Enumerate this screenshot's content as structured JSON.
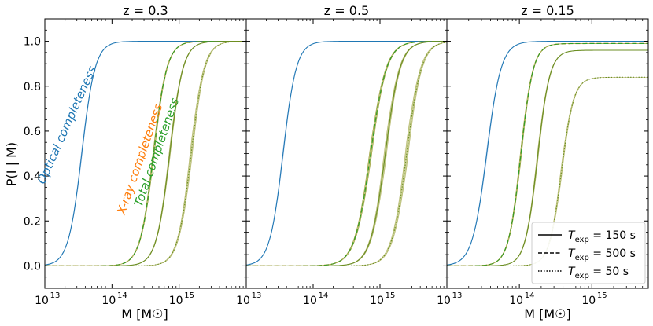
{
  "chart_data": [
    {
      "type": "line",
      "title": "z =  0.3",
      "xlabel": "M [M☉]",
      "ylabel": "P(I | M)",
      "xscale": "log",
      "xlim": [
        10000000000000.0,
        1e+16
      ],
      "ylim": [
        -0.1,
        1.1
      ],
      "xtick_labels": [
        "10",
        "10",
        "10"
      ],
      "xtick_exponents": [
        "13",
        "14",
        "15"
      ],
      "xtick_values": [
        13,
        14,
        15
      ],
      "ytick_labels": [
        "0.0",
        "0.2",
        "0.4",
        "0.6",
        "0.8",
        "1.0"
      ],
      "ytick_values": [
        0.0,
        0.2,
        0.4,
        0.6,
        0.8,
        1.0
      ],
      "series": [
        {
          "name": "Optical completeness",
          "kind": "optical",
          "color": "#1f77b4",
          "style": "solid",
          "plateau": 1.0,
          "logM50": 13.55,
          "width": 0.2,
          "band": 0.03
        },
        {
          "name": "X-ray completeness",
          "kind": "xray",
          "color": "#ff7f0e",
          "style": "dashed",
          "exposure": "500 s",
          "plateau": 1.0,
          "logM50": 14.62,
          "width": 0.2,
          "band": 0.03
        },
        {
          "name": "Total completeness",
          "kind": "total",
          "color": "#2ca02c",
          "style": "dashed",
          "exposure": "500 s",
          "plateau": 1.0,
          "logM50": 14.62,
          "width": 0.2,
          "band": 0.03
        },
        {
          "name": "Total completeness",
          "kind": "total",
          "color": "#2ca02c",
          "style": "solid",
          "exposure": "150 s",
          "plateau": 1.0,
          "logM50": 14.86,
          "width": 0.2,
          "band": 0.03
        },
        {
          "name": "Total completeness",
          "kind": "total",
          "color": "#2ca02c",
          "style": "dotted",
          "exposure": "50 s",
          "plateau": 1.0,
          "logM50": 15.18,
          "width": 0.2,
          "band": 0.05
        }
      ],
      "annotations": [
        {
          "text": "Optical completeness",
          "color": "#1f77b4",
          "logM": 13.38,
          "y": 0.62,
          "angle": -66
        },
        {
          "text": "X-ray completeness",
          "color": "#ff7f0e",
          "logM": 14.47,
          "y": 0.47,
          "angle": -71
        },
        {
          "text": "Total completeness",
          "color": "#2ca02c",
          "logM": 14.72,
          "y": 0.5,
          "angle": -71
        }
      ]
    },
    {
      "type": "line",
      "title": "z =  0.5",
      "xlabel": "",
      "ylabel": "",
      "xscale": "log",
      "xlim": [
        10000000000000.0,
        1e+16
      ],
      "ylim": [
        -0.1,
        1.1
      ],
      "xtick_labels": [
        "10",
        "10",
        "10"
      ],
      "xtick_exponents": [
        "13",
        "14",
        "15"
      ],
      "xtick_values": [
        13,
        14,
        15
      ],
      "ytick_labels": [],
      "ytick_values": [
        0.0,
        0.2,
        0.4,
        0.6,
        0.8,
        1.0
      ],
      "series": [
        {
          "name": "Optical completeness",
          "kind": "optical",
          "color": "#1f77b4",
          "style": "solid",
          "plateau": 1.0,
          "logM50": 13.55,
          "width": 0.2,
          "band": 0.03
        },
        {
          "name": "X-ray completeness",
          "kind": "xray",
          "color": "#ff7f0e",
          "style": "dashed",
          "exposure": "500 s",
          "plateau": 1.0,
          "logM50": 14.86,
          "width": 0.24,
          "band": 0.04
        },
        {
          "name": "Total completeness",
          "kind": "total",
          "color": "#2ca02c",
          "style": "dashed",
          "exposure": "500 s",
          "plateau": 1.0,
          "logM50": 14.86,
          "width": 0.24,
          "band": 0.04
        },
        {
          "name": "Total completeness",
          "kind": "total",
          "color": "#2ca02c",
          "style": "solid",
          "exposure": "150 s",
          "plateau": 1.0,
          "logM50": 15.08,
          "width": 0.22,
          "band": 0.05
        },
        {
          "name": "Total completeness",
          "kind": "total",
          "color": "#2ca02c",
          "style": "dotted",
          "exposure": "50 s",
          "plateau": 1.0,
          "logM50": 15.4,
          "width": 0.22,
          "band": 0.06
        }
      ],
      "annotations": []
    },
    {
      "type": "line",
      "title": "z = 0.15",
      "xlabel": "M [M☉]",
      "ylabel": "",
      "xscale": "log",
      "xlim": [
        10000000000000.0,
        6000000000000000.0
      ],
      "ylim": [
        -0.1,
        1.1
      ],
      "xtick_labels": [
        "10",
        "10",
        "10"
      ],
      "xtick_exponents": [
        "13",
        "14",
        "15"
      ],
      "xtick_values": [
        13,
        14,
        15
      ],
      "ytick_labels": [],
      "ytick_values": [
        0.0,
        0.2,
        0.4,
        0.6,
        0.8,
        1.0
      ],
      "series": [
        {
          "name": "Optical completeness",
          "kind": "optical",
          "color": "#1f77b4",
          "style": "solid",
          "plateau": 1.0,
          "logM50": 13.55,
          "width": 0.2,
          "band": 0.03
        },
        {
          "name": "X-ray completeness",
          "kind": "xray",
          "color": "#ff7f0e",
          "style": "dashed",
          "exposure": "500 s",
          "plateau": 0.99,
          "logM50": 14.02,
          "width": 0.17,
          "band": 0.03
        },
        {
          "name": "Total completeness",
          "kind": "total",
          "color": "#2ca02c",
          "style": "dashed",
          "exposure": "500 s",
          "plateau": 0.99,
          "logM50": 14.02,
          "width": 0.17,
          "band": 0.03
        },
        {
          "name": "Total completeness",
          "kind": "total",
          "color": "#2ca02c",
          "style": "solid",
          "exposure": "150 s",
          "plateau": 0.96,
          "logM50": 14.25,
          "width": 0.17,
          "band": 0.03
        },
        {
          "name": "Total completeness",
          "kind": "total",
          "color": "#2ca02c",
          "style": "dotted",
          "exposure": "50 s",
          "plateau": 0.84,
          "logM50": 14.58,
          "width": 0.17,
          "band": 0.03
        }
      ],
      "annotations": [],
      "legend": {
        "position": "lower-right",
        "entries": [
          {
            "symbol": "T",
            "sub": "exp",
            "text": " = 150 s",
            "style": "solid"
          },
          {
            "symbol": "T",
            "sub": "exp",
            "text": " = 500 s",
            "style": "dashed"
          },
          {
            "symbol": "T",
            "sub": "exp",
            "text": " = 50 s",
            "style": "dotted"
          }
        ]
      }
    }
  ],
  "colors": {
    "optical": "#1f77b4",
    "optical_band": "#aec7e8",
    "xray": "#ff7f0e",
    "total": "#2ca02c",
    "total_line": "#6b8e23",
    "band": "#b5bd6e",
    "band_edge": "#808000"
  }
}
